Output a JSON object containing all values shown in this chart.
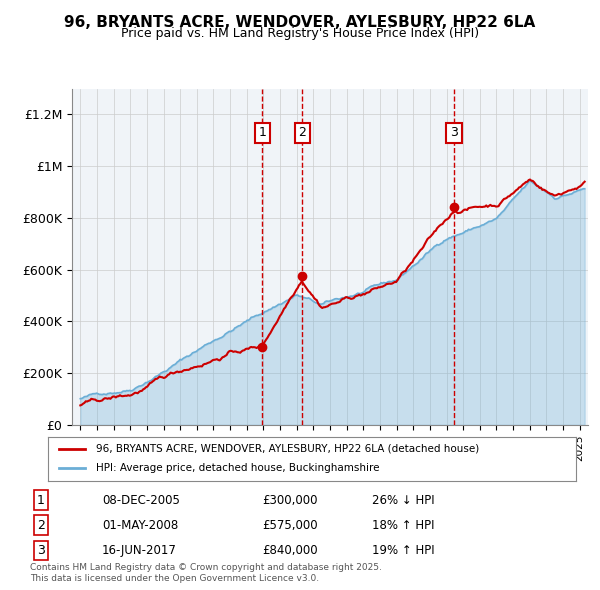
{
  "title": "96, BRYANTS ACRE, WENDOVER, AYLESBURY, HP22 6LA",
  "subtitle": "Price paid vs. HM Land Registry's House Price Index (HPI)",
  "hpi_color": "#6baed6",
  "price_color": "#cc0000",
  "transaction_color": "#cc0000",
  "marker_fill": "#cc0000",
  "bg_color": "#ffffff",
  "plot_bg_color": "#f0f4f8",
  "grid_color": "#cccccc",
  "legend_box_color": "#cc0000",
  "transactions": [
    {
      "num": 1,
      "date": "08-DEC-2005",
      "price": 300000,
      "hpi_pct": "26%",
      "hpi_dir": "↓",
      "x_year": 2005.93
    },
    {
      "num": 2,
      "date": "01-MAY-2008",
      "price": 575000,
      "hpi_pct": "18%",
      "hpi_dir": "↑",
      "x_year": 2008.33
    },
    {
      "num": 3,
      "date": "16-JUN-2017",
      "price": 840000,
      "hpi_pct": "19%",
      "hpi_dir": "↑",
      "x_year": 2017.45
    }
  ],
  "ylim": [
    0,
    1300000
  ],
  "xlim_start": 1994.5,
  "xlim_end": 2025.5,
  "ylabel_ticks": [
    0,
    200000,
    400000,
    600000,
    800000,
    1000000,
    1200000
  ],
  "ylabel_labels": [
    "£0",
    "£200K",
    "£400K",
    "£600K",
    "£800K",
    "£1M",
    "£1.2M"
  ],
  "footer": "Contains HM Land Registry data © Crown copyright and database right 2025.\nThis data is licensed under the Open Government Licence v3.0.",
  "legend_line1": "96, BRYANTS ACRE, WENDOVER, AYLESBURY, HP22 6LA (detached house)",
  "legend_line2": "HPI: Average price, detached house, Buckinghamshire"
}
